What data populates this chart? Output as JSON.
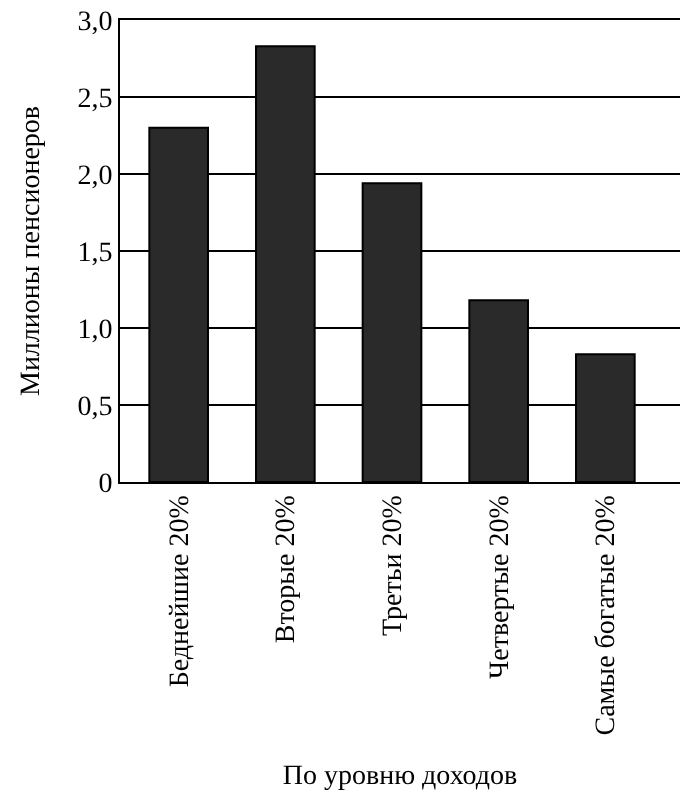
{
  "chart_data": {
    "type": "bar",
    "xlabel": "По уровню доходов",
    "ylabel": "Миллионы пенсионеров",
    "categories": [
      "Беднейшие 20%",
      "Вторые 20%",
      "Третьи 20%",
      "Четвертые 20%",
      "Самые богатые 20%"
    ],
    "values": [
      2.3,
      2.83,
      1.94,
      1.18,
      0.83
    ],
    "color": "#2a2a2a",
    "ylim": [
      0,
      3.0
    ],
    "yticks": [
      {
        "value": 0,
        "label": "0"
      },
      {
        "value": 0.5,
        "label": "0,5"
      },
      {
        "value": 1.0,
        "label": "1,0"
      },
      {
        "value": 1.5,
        "label": "1,5"
      },
      {
        "value": 2.0,
        "label": "2,0"
      },
      {
        "value": 2.5,
        "label": "2,5"
      },
      {
        "value": 3.0,
        "label": "3,0"
      }
    ],
    "grid": "y"
  }
}
